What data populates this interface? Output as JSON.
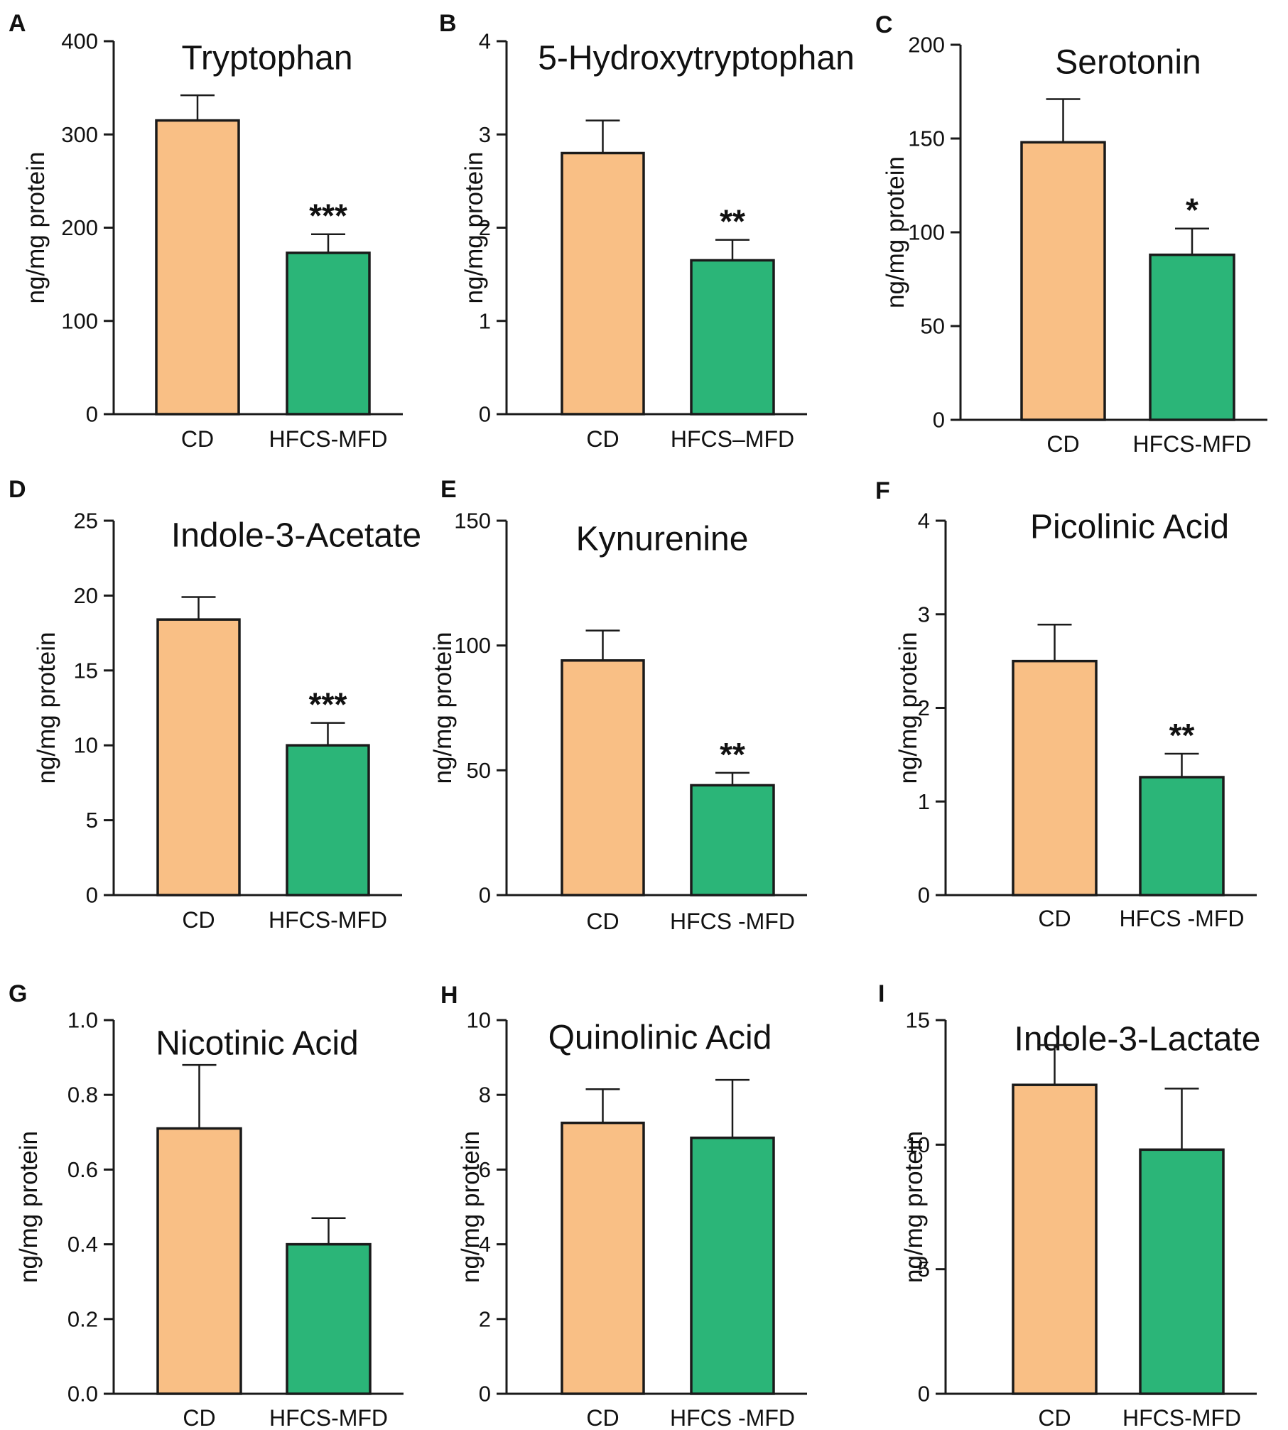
{
  "figure": {
    "colors": {
      "cd": "#F9BF85",
      "hfcs": "#2BB578",
      "edge": "#1a1a1a",
      "axis": "#1a1a1a"
    },
    "panels": [
      {
        "letter": "A",
        "title": "Tryptophan",
        "ylabel": "ng/mg protein",
        "ylim": [
          0,
          400
        ],
        "ticks": [
          "0",
          "100",
          "200",
          "300",
          "400"
        ],
        "categories": [
          "CD",
          "HFCS-MFD"
        ],
        "values": [
          315,
          173
        ],
        "errors": [
          27,
          20
        ],
        "sig": "***"
      },
      {
        "letter": "B",
        "title": "5-Hydroxytryptophan",
        "ylabel": "ng/mg protein",
        "ylim": [
          0,
          4
        ],
        "ticks": [
          "0",
          "1",
          "2",
          "3",
          "4"
        ],
        "categories": [
          "CD",
          "HFCS–MFD"
        ],
        "values": [
          2.8,
          1.65
        ],
        "errors": [
          0.35,
          0.22
        ],
        "sig": "**"
      },
      {
        "letter": "C",
        "title": "Serotonin",
        "ylabel": "ng/mg protein",
        "ylim": [
          0,
          200
        ],
        "ticks": [
          "0",
          "50",
          "100",
          "150",
          "200"
        ],
        "categories": [
          "CD",
          "HFCS-MFD"
        ],
        "values": [
          148,
          88
        ],
        "errors": [
          23,
          14
        ],
        "sig": "*"
      },
      {
        "letter": "D",
        "title": "Indole-3-Acetate",
        "ylabel": "ng/mg protein",
        "ylim": [
          0,
          25
        ],
        "ticks": [
          "0",
          "5",
          "10",
          "15",
          "20",
          "25"
        ],
        "categories": [
          "CD",
          "HFCS-MFD"
        ],
        "values": [
          18.4,
          10
        ],
        "errors": [
          1.5,
          1.5
        ],
        "sig": "***"
      },
      {
        "letter": "E",
        "title": "Kynurenine",
        "ylabel": "ng/mg protein",
        "ylim": [
          0,
          150
        ],
        "ticks": [
          "0",
          "50",
          "100",
          "150"
        ],
        "categories": [
          "CD",
          "HFCS -MFD"
        ],
        "values": [
          94,
          44
        ],
        "errors": [
          12,
          5
        ],
        "sig": "**"
      },
      {
        "letter": "F",
        "title": "Picolinic Acid",
        "ylabel": "ng/mg protein",
        "ylim": [
          0,
          4
        ],
        "ticks": [
          "0",
          "1",
          "2",
          "3",
          "4"
        ],
        "categories": [
          "CD",
          "HFCS -MFD"
        ],
        "values": [
          2.5,
          1.26
        ],
        "errors": [
          0.39,
          0.25
        ],
        "sig": "**"
      },
      {
        "letter": "G",
        "title": "Nicotinic Acid",
        "ylabel": "ng/mg protein",
        "ylim": [
          0,
          1.0
        ],
        "ticks": [
          "0.0",
          "0.2",
          "0.4",
          "0.6",
          "0.8",
          "1.0"
        ],
        "categories": [
          "CD",
          "HFCS-MFD"
        ],
        "values": [
          0.71,
          0.4
        ],
        "errors": [
          0.17,
          0.07
        ],
        "sig": ""
      },
      {
        "letter": "H",
        "title": "Quinolinic Acid",
        "ylabel": "ng/mg protein",
        "ylim": [
          0,
          10
        ],
        "ticks": [
          "0",
          "2",
          "4",
          "6",
          "8",
          "10"
        ],
        "categories": [
          "CD",
          "HFCS -MFD"
        ],
        "values": [
          7.25,
          6.85
        ],
        "errors": [
          0.9,
          1.55
        ],
        "sig": ""
      },
      {
        "letter": "I",
        "title": "Indole-3-Lactate",
        "ylabel": "ng/mg protein",
        "ylim": [
          0,
          15
        ],
        "ticks": [
          "0",
          "5",
          "10",
          "15"
        ],
        "categories": [
          "CD",
          "HFCS-MFD"
        ],
        "values": [
          12.4,
          9.8
        ],
        "errors": [
          1.6,
          2.45
        ],
        "sig": ""
      }
    ]
  },
  "chart_data": [
    {
      "type": "bar",
      "title": "Tryptophan",
      "xlabel": "",
      "ylabel": "ng/mg protein",
      "categories": [
        "CD",
        "HFCS-MFD"
      ],
      "values": [
        315,
        173
      ],
      "error_bars": [
        27,
        20
      ],
      "ylim": [
        0,
        400
      ],
      "significance": "***"
    },
    {
      "type": "bar",
      "title": "5-Hydroxytryptophan",
      "xlabel": "",
      "ylabel": "ng/mg protein",
      "categories": [
        "CD",
        "HFCS–MFD"
      ],
      "values": [
        2.8,
        1.65
      ],
      "error_bars": [
        0.35,
        0.22
      ],
      "ylim": [
        0,
        4
      ],
      "significance": "**"
    },
    {
      "type": "bar",
      "title": "Serotonin",
      "xlabel": "",
      "ylabel": "ng/mg protein",
      "categories": [
        "CD",
        "HFCS-MFD"
      ],
      "values": [
        148,
        88
      ],
      "error_bars": [
        23,
        14
      ],
      "ylim": [
        0,
        200
      ],
      "significance": "*"
    },
    {
      "type": "bar",
      "title": "Indole-3-Acetate",
      "xlabel": "",
      "ylabel": "ng/mg protein",
      "categories": [
        "CD",
        "HFCS-MFD"
      ],
      "values": [
        18.4,
        10
      ],
      "error_bars": [
        1.5,
        1.5
      ],
      "ylim": [
        0,
        25
      ],
      "significance": "***"
    },
    {
      "type": "bar",
      "title": "Kynurenine",
      "xlabel": "",
      "ylabel": "ng/mg protein",
      "categories": [
        "CD",
        "HFCS -MFD"
      ],
      "values": [
        94,
        44
      ],
      "error_bars": [
        12,
        5
      ],
      "ylim": [
        0,
        150
      ],
      "significance": "**"
    },
    {
      "type": "bar",
      "title": "Picolinic Acid",
      "xlabel": "",
      "ylabel": "ng/mg protein",
      "categories": [
        "CD",
        "HFCS -MFD"
      ],
      "values": [
        2.5,
        1.26
      ],
      "error_bars": [
        0.39,
        0.25
      ],
      "ylim": [
        0,
        4
      ],
      "significance": "**"
    },
    {
      "type": "bar",
      "title": "Nicotinic Acid",
      "xlabel": "",
      "ylabel": "ng/mg protein",
      "categories": [
        "CD",
        "HFCS-MFD"
      ],
      "values": [
        0.71,
        0.4
      ],
      "error_bars": [
        0.17,
        0.07
      ],
      "ylim": [
        0,
        1.0
      ],
      "significance": ""
    },
    {
      "type": "bar",
      "title": "Quinolinic Acid",
      "xlabel": "",
      "ylabel": "ng/mg protein",
      "categories": [
        "CD",
        "HFCS -MFD"
      ],
      "values": [
        7.25,
        6.85
      ],
      "error_bars": [
        0.9,
        1.55
      ],
      "ylim": [
        0,
        10
      ],
      "significance": ""
    },
    {
      "type": "bar",
      "title": "Indole-3-Lactate",
      "xlabel": "",
      "ylabel": "ng/mg protein",
      "categories": [
        "CD",
        "HFCS-MFD"
      ],
      "values": [
        12.4,
        9.8
      ],
      "error_bars": [
        1.6,
        2.45
      ],
      "ylim": [
        0,
        15
      ],
      "significance": ""
    }
  ]
}
